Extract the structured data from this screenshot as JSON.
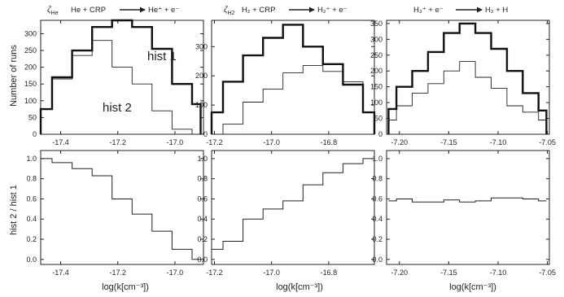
{
  "ylabels": {
    "top": "Number of runs",
    "bottom": "hist 2 / hist 1"
  },
  "xlabel": "log(k[cm⁻³])",
  "chart_data": [
    {
      "type": "histogram",
      "title_parts": {
        "zeta": "ζ",
        "zeta_sub": "He",
        "lhs": "He + CRP",
        "rhs": "He⁺ + e⁻"
      },
      "series_labels": {
        "s1": "hist 1",
        "s2": "hist 2"
      },
      "x_edges": [
        -17.47,
        -17.43,
        -17.36,
        -17.29,
        -17.22,
        -17.15,
        -17.08,
        -17.01,
        -16.94,
        -16.91
      ],
      "series": [
        {
          "values": [
            75,
            170,
            250,
            320,
            340,
            320,
            255,
            150,
            90
          ]
        },
        {
          "values": [
            75,
            165,
            235,
            280,
            200,
            150,
            70,
            15,
            0
          ]
        }
      ],
      "xlim": [
        -17.47,
        -16.9
      ],
      "xticks": [
        "-17.4",
        "-17.2",
        "-17.0"
      ],
      "xtick_values": [
        -17.4,
        -17.2,
        -17.0
      ],
      "ylim": [
        0,
        340
      ],
      "yticks": [
        "0",
        "50",
        "100",
        "150",
        "200",
        "250",
        "300"
      ],
      "ytick_values": [
        0,
        50,
        100,
        150,
        200,
        250,
        300
      ]
    },
    {
      "type": "histogram",
      "title_parts": {
        "zeta": "ζ",
        "zeta_sub": "H2",
        "lhs": "H₂ + CRP",
        "rhs": "H₂⁺ + e⁻"
      },
      "series_labels": {},
      "x_edges": [
        -17.21,
        -17.17,
        -17.1,
        -17.03,
        -16.96,
        -16.89,
        -16.82,
        -16.75,
        -16.68,
        -16.64
      ],
      "series": [
        {
          "values": [
            75,
            180,
            270,
            330,
            375,
            300,
            240,
            170,
            75
          ]
        },
        {
          "values": [
            0,
            35,
            110,
            155,
            210,
            235,
            215,
            180,
            75
          ]
        }
      ],
      "xlim": [
        -17.21,
        -16.64
      ],
      "xticks": [
        "-17.2",
        "-17.0",
        "-16.8"
      ],
      "xtick_values": [
        -17.2,
        -17.0,
        -16.8
      ],
      "ylim": [
        0,
        390
      ],
      "yticks": [
        "0",
        "100",
        "200",
        "300"
      ],
      "ytick_values": [
        0,
        100,
        200,
        300
      ]
    },
    {
      "type": "histogram",
      "title_parts": {
        "lhs": "H₃⁺ + e⁻",
        "rhs": "H₂ + H"
      },
      "series_labels": {},
      "x_edges": [
        -7.211,
        -7.203,
        -7.187,
        -7.171,
        -7.155,
        -7.139,
        -7.123,
        -7.107,
        -7.091,
        -7.075,
        -7.059,
        -7.051
      ],
      "series": [
        {
          "values": [
            80,
            150,
            200,
            260,
            320,
            350,
            320,
            270,
            200,
            130,
            75
          ]
        },
        {
          "values": [
            45,
            90,
            130,
            160,
            200,
            230,
            180,
            145,
            90,
            70,
            45
          ]
        }
      ],
      "xlim": [
        -7.213,
        -7.048
      ],
      "xticks": [
        "-7.20",
        "-7.15",
        "-7.10",
        "-7.05"
      ],
      "xtick_values": [
        -7.2,
        -7.15,
        -7.1,
        -7.05
      ],
      "ylim": [
        0,
        360
      ],
      "yticks": [
        "0",
        "50",
        "100",
        "150",
        "200",
        "250",
        "300",
        "350"
      ],
      "ytick_values": [
        0,
        50,
        100,
        150,
        200,
        250,
        300,
        350
      ]
    },
    {
      "type": "step",
      "x_edges": [
        -17.47,
        -17.43,
        -17.36,
        -17.29,
        -17.22,
        -17.15,
        -17.08,
        -17.01,
        -16.94,
        -16.91
      ],
      "values": [
        1.0,
        0.96,
        0.9,
        0.83,
        0.6,
        0.45,
        0.28,
        0.1,
        0.0
      ],
      "xlim": [
        -17.47,
        -16.9
      ],
      "xticks": [
        "-17.4",
        "-17.2",
        "-17.0"
      ],
      "xtick_values": [
        -17.4,
        -17.2,
        -17.0
      ],
      "ylim": [
        -0.05,
        1.08
      ],
      "yticks": [
        "0.0",
        "0.2",
        "0.4",
        "0.6",
        "0.8",
        "1.0"
      ],
      "ytick_values": [
        0,
        0.2,
        0.4,
        0.6,
        0.8,
        1.0
      ]
    },
    {
      "type": "step",
      "x_edges": [
        -17.21,
        -17.17,
        -17.1,
        -17.03,
        -16.96,
        -16.89,
        -16.82,
        -16.75,
        -16.68,
        -16.64
      ],
      "values": [
        0.1,
        0.18,
        0.4,
        0.5,
        0.58,
        0.74,
        0.86,
        0.95,
        1.0
      ],
      "xlim": [
        -17.21,
        -16.64
      ],
      "xticks": [
        "-17.2",
        "-17.0",
        "-16.8"
      ],
      "xtick_values": [
        -17.2,
        -17.0,
        -16.8
      ],
      "ylim": [
        -0.05,
        1.08
      ],
      "yticks": [
        "0.0",
        "0.2",
        "0.4",
        "0.6",
        "0.8",
        "1.0"
      ],
      "ytick_values": [
        0,
        0.2,
        0.4,
        0.6,
        0.8,
        1.0
      ]
    },
    {
      "type": "step",
      "x_edges": [
        -7.211,
        -7.203,
        -7.187,
        -7.171,
        -7.155,
        -7.139,
        -7.123,
        -7.107,
        -7.091,
        -7.075,
        -7.059,
        -7.051
      ],
      "values": [
        0.58,
        0.6,
        0.57,
        0.57,
        0.59,
        0.57,
        0.58,
        0.61,
        0.61,
        0.6,
        0.58
      ],
      "xlim": [
        -7.213,
        -7.048
      ],
      "xticks": [
        "-7.20",
        "-7.15",
        "-7.10",
        "-7.05"
      ],
      "xtick_values": [
        -7.2,
        -7.15,
        -7.1,
        -7.05
      ],
      "ylim": [
        -0.05,
        1.08
      ],
      "yticks": [
        "0.0",
        "0.2",
        "0.4",
        "0.6",
        "0.8",
        "1.0"
      ],
      "ytick_values": [
        0,
        0.2,
        0.4,
        0.6,
        0.8,
        1.0
      ]
    }
  ]
}
